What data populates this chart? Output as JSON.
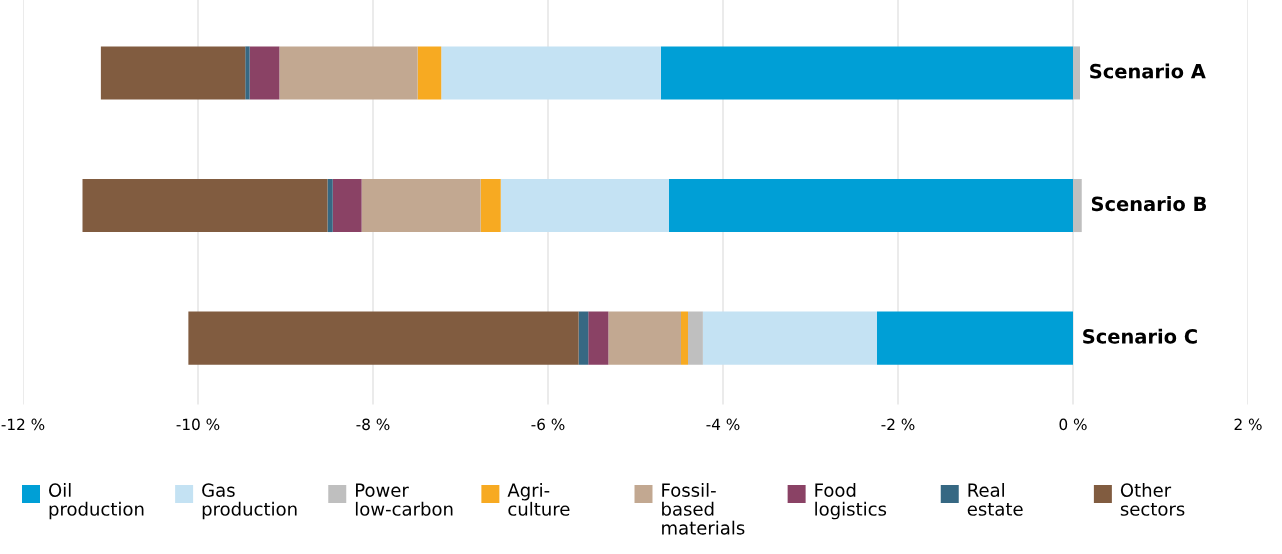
{
  "chart_data": {
    "type": "bar",
    "orientation": "horizontal",
    "stacked": true,
    "categories": [
      "Scenario A",
      "Scenario B",
      "Scenario C"
    ],
    "series": [
      {
        "name": "Oil\nproduction",
        "color": "#009fd6",
        "values": [
          -4.71,
          -4.62,
          -2.24
        ]
      },
      {
        "name": "Gas\nproduction",
        "color": "#c4e2f3",
        "values": [
          -2.51,
          -1.92,
          -1.99
        ]
      },
      {
        "name": "Power\nlow-carbon",
        "color": "#bfbfbf",
        "values": [
          0.08,
          0.1,
          -0.17
        ]
      },
      {
        "name": "Agri-\nculture",
        "color": "#f7aa22",
        "values": [
          -0.27,
          -0.23,
          -0.08
        ]
      },
      {
        "name": "Fossil-\nbased\nmaterials",
        "color": "#c2a891",
        "values": [
          -1.58,
          -1.36,
          -0.83
        ]
      },
      {
        "name": "Food\nlogistics",
        "color": "#8a4265",
        "values": [
          -0.34,
          -0.33,
          -0.23
        ]
      },
      {
        "name": "Real\nestate",
        "color": "#366883",
        "values": [
          -0.05,
          -0.06,
          -0.11
        ]
      },
      {
        "name": "Other\nsectors",
        "color": "#815c40",
        "values": [
          -1.65,
          -2.8,
          -4.46
        ]
      }
    ],
    "xlim": [
      -12,
      2
    ],
    "xticks": [
      {
        "value": -12,
        "label": "-12 %"
      },
      {
        "value": -10,
        "label": "-10 %"
      },
      {
        "value": -8,
        "label": "-8 %"
      },
      {
        "value": -6,
        "label": "-6 %"
      },
      {
        "value": -4,
        "label": "-4 %"
      },
      {
        "value": -2,
        "label": "-2 %"
      },
      {
        "value": 0,
        "label": "0 %"
      },
      {
        "value": 2,
        "label": "2 %"
      }
    ],
    "grid": "x",
    "legend": "bottom"
  }
}
